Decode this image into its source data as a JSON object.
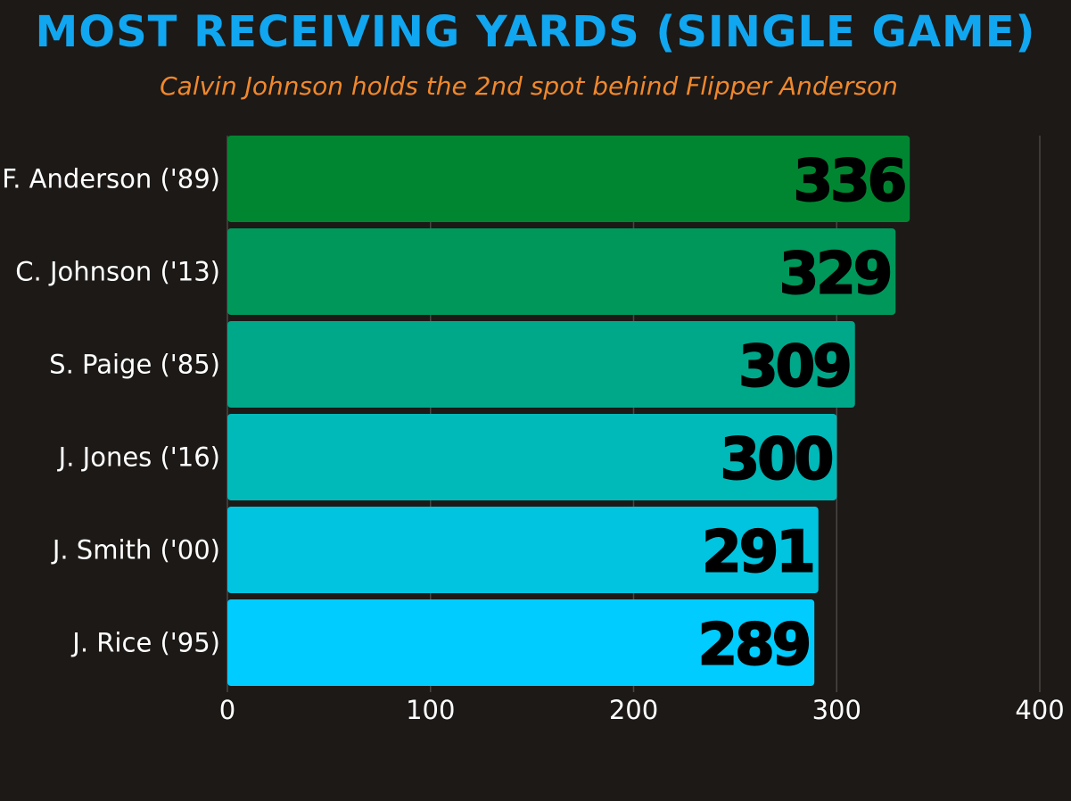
{
  "chart_data": {
    "type": "bar",
    "orientation": "horizontal",
    "title": "MOST RECEIVING YARDS (SINGLE GAME)",
    "subtitle": "Calvin Johnson holds the 2nd spot behind Flipper Anderson",
    "categories": [
      "F. Anderson ('89)",
      "C. Johnson ('13)",
      "S. Paige ('85)",
      "J. Jones ('16)",
      "J. Smith ('00)",
      "J. Rice ('95)"
    ],
    "values": [
      336,
      329,
      309,
      300,
      291,
      289
    ],
    "data_labels": [
      "336",
      "329",
      "309",
      "300",
      "291",
      "289"
    ],
    "colors": [
      "#008631",
      "#00975b",
      "#00a88a",
      "#00b9b9",
      "#00c4e0",
      "#00ccff"
    ],
    "xlim": [
      0,
      400
    ],
    "xticks": [
      0,
      100,
      200,
      300,
      400
    ],
    "xtick_labels": [
      "0",
      "100",
      "200",
      "300",
      "400"
    ],
    "xlabel": "",
    "ylabel": "",
    "grid": true,
    "legend": "none"
  },
  "style": {
    "background": "#1c1917",
    "title_color": "#11a6f0",
    "subtitle_color": "#f0882c",
    "grid_color": "#4a4643"
  }
}
